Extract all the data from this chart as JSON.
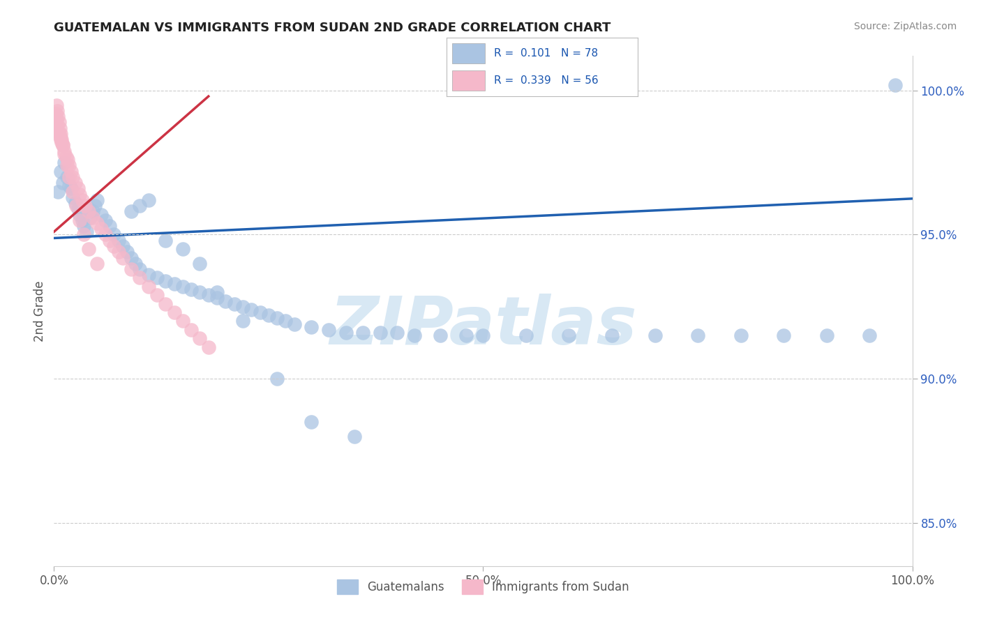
{
  "title": "GUATEMALAN VS IMMIGRANTS FROM SUDAN 2ND GRADE CORRELATION CHART",
  "source": "Source: ZipAtlas.com",
  "ylabel": "2nd Grade",
  "xlim": [
    0,
    1
  ],
  "ylim": [
    0.835,
    1.012
  ],
  "yticks": [
    0.85,
    0.9,
    0.95,
    1.0
  ],
  "ytick_labels": [
    "85.0%",
    "90.0%",
    "95.0%",
    "100.0%"
  ],
  "xticks": [
    0.0,
    0.5,
    1.0
  ],
  "xtick_labels": [
    "0.0%",
    "50.0%",
    "100.0%"
  ],
  "blue_label": "Guatemalans",
  "pink_label": "Immigrants from Sudan",
  "blue_R": 0.101,
  "blue_N": 78,
  "pink_R": 0.339,
  "pink_N": 56,
  "blue_dot_color": "#aac4e2",
  "blue_line_color": "#2060b0",
  "pink_dot_color": "#f5b8ca",
  "pink_line_color": "#cc3344",
  "legend_box_blue": "#aac4e2",
  "legend_box_pink": "#f5b8ca",
  "legend_text_color": "#1a56b0",
  "watermark_text": "ZIPatlas",
  "watermark_color": "#d8e8f4",
  "background_color": "#ffffff",
  "grid_color": "#cccccc",
  "title_color": "#222222",
  "source_color": "#888888",
  "ylabel_color": "#555555",
  "tick_color": "#555555",
  "ytick_color": "#3060c0",
  "blue_line_y0": 0.9488,
  "blue_line_y1": 0.9625,
  "pink_line_x0": 0.0,
  "pink_line_x1": 0.18,
  "pink_line_y0": 0.951,
  "pink_line_y1": 0.998,
  "blue_x": [
    0.005,
    0.008,
    0.01,
    0.012,
    0.015,
    0.018,
    0.02,
    0.022,
    0.025,
    0.028,
    0.03,
    0.033,
    0.035,
    0.038,
    0.04,
    0.042,
    0.045,
    0.048,
    0.05,
    0.055,
    0.06,
    0.065,
    0.07,
    0.075,
    0.08,
    0.085,
    0.09,
    0.095,
    0.1,
    0.11,
    0.12,
    0.13,
    0.14,
    0.15,
    0.16,
    0.17,
    0.18,
    0.19,
    0.2,
    0.21,
    0.22,
    0.23,
    0.24,
    0.25,
    0.26,
    0.27,
    0.28,
    0.3,
    0.32,
    0.34,
    0.36,
    0.38,
    0.4,
    0.42,
    0.45,
    0.48,
    0.5,
    0.55,
    0.6,
    0.65,
    0.7,
    0.75,
    0.8,
    0.85,
    0.9,
    0.95,
    0.98,
    0.09,
    0.1,
    0.11,
    0.13,
    0.15,
    0.17,
    0.19,
    0.22,
    0.26,
    0.3,
    0.35
  ],
  "blue_y": [
    0.965,
    0.972,
    0.968,
    0.975,
    0.97,
    0.967,
    0.966,
    0.963,
    0.961,
    0.959,
    0.957,
    0.955,
    0.953,
    0.951,
    0.959,
    0.956,
    0.958,
    0.96,
    0.962,
    0.957,
    0.955,
    0.953,
    0.95,
    0.948,
    0.946,
    0.944,
    0.942,
    0.94,
    0.938,
    0.936,
    0.935,
    0.934,
    0.933,
    0.932,
    0.931,
    0.93,
    0.929,
    0.928,
    0.927,
    0.926,
    0.925,
    0.924,
    0.923,
    0.922,
    0.921,
    0.92,
    0.919,
    0.918,
    0.917,
    0.916,
    0.916,
    0.916,
    0.916,
    0.915,
    0.915,
    0.915,
    0.915,
    0.915,
    0.915,
    0.915,
    0.915,
    0.915,
    0.915,
    0.915,
    0.915,
    0.915,
    1.002,
    0.958,
    0.96,
    0.962,
    0.948,
    0.945,
    0.94,
    0.93,
    0.92,
    0.9,
    0.885,
    0.88
  ],
  "pink_x": [
    0.002,
    0.003,
    0.004,
    0.005,
    0.006,
    0.007,
    0.008,
    0.009,
    0.01,
    0.012,
    0.014,
    0.016,
    0.018,
    0.02,
    0.022,
    0.025,
    0.028,
    0.03,
    0.033,
    0.036,
    0.04,
    0.045,
    0.05,
    0.055,
    0.06,
    0.065,
    0.07,
    0.075,
    0.08,
    0.09,
    0.1,
    0.11,
    0.12,
    0.13,
    0.14,
    0.15,
    0.16,
    0.17,
    0.18,
    0.003,
    0.004,
    0.005,
    0.006,
    0.007,
    0.008,
    0.009,
    0.01,
    0.012,
    0.015,
    0.018,
    0.022,
    0.026,
    0.03,
    0.035,
    0.04,
    0.05
  ],
  "pink_y": [
    0.992,
    0.99,
    0.988,
    0.986,
    0.985,
    0.984,
    0.983,
    0.982,
    0.981,
    0.979,
    0.977,
    0.976,
    0.974,
    0.972,
    0.97,
    0.968,
    0.966,
    0.964,
    0.962,
    0.96,
    0.958,
    0.956,
    0.954,
    0.952,
    0.95,
    0.948,
    0.946,
    0.944,
    0.942,
    0.938,
    0.935,
    0.932,
    0.929,
    0.926,
    0.923,
    0.92,
    0.917,
    0.914,
    0.911,
    0.995,
    0.993,
    0.991,
    0.989,
    0.987,
    0.985,
    0.983,
    0.981,
    0.978,
    0.974,
    0.97,
    0.965,
    0.96,
    0.955,
    0.95,
    0.945,
    0.94
  ]
}
